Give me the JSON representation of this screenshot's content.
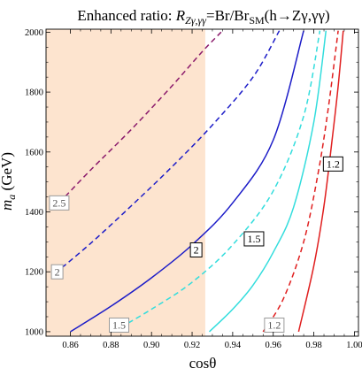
{
  "chart_data": {
    "type": "line",
    "title": "Enhanced ratio: R_{Zγ,γγ}=Br/Br_{SM}(h→Zγ,γγ)",
    "title_parts": [
      {
        "text": "Enhanced ratio: ",
        "style": "normal"
      },
      {
        "text": "R",
        "style": "italic"
      },
      {
        "text": "Zγ,γγ",
        "style": "sub-italic"
      },
      {
        "text": "=Br/Br",
        "style": "normal"
      },
      {
        "text": "SM",
        "style": "sub"
      },
      {
        "text": "(h→Zγ,γγ)",
        "style": "normal"
      }
    ],
    "xlabel": "cosθ",
    "ylabel": "m_a (GeV)",
    "ylabel_parts": [
      {
        "text": "m",
        "style": "italic"
      },
      {
        "text": "a",
        "style": "sub-italic"
      },
      {
        "text": " (GeV)",
        "style": "normal"
      }
    ],
    "xlim": [
      0.848,
      1.002
    ],
    "ylim": [
      985,
      2010
    ],
    "xticks": [
      0.86,
      0.88,
      0.9,
      0.92,
      0.94,
      0.96,
      0.98,
      1.0
    ],
    "xtick_labels": [
      "0.86",
      "0.88",
      "0.90",
      "0.92",
      "0.94",
      "0.96",
      "0.98",
      "1.00"
    ],
    "yticks": [
      1000,
      1200,
      1400,
      1600,
      1800,
      2000
    ],
    "ytick_labels": [
      "1000",
      "1200",
      "1400",
      "1600",
      "1800",
      "2000"
    ],
    "grid": false,
    "excluded_region": {
      "x_range": [
        0.848,
        0.9265
      ],
      "color": "#fde4cf"
    },
    "series": [
      {
        "color": "#8b1a6b",
        "dash": "dashed",
        "x": [
          0.8545,
          0.87,
          0.89,
          0.91,
          0.925,
          0.935
        ],
        "y": [
          1430,
          1540,
          1675,
          1820,
          1935,
          2005
        ]
      },
      {
        "color": "#1c1cc8",
        "dash": "dashed",
        "x": [
          0.8525,
          0.87,
          0.89,
          0.91,
          0.93,
          0.95,
          0.963
        ],
        "y": [
          1195,
          1295,
          1420,
          1550,
          1690,
          1850,
          2005
        ]
      },
      {
        "color": "#1c1cc8",
        "dash": "solid",
        "x": [
          0.86,
          0.88,
          0.9,
          0.92,
          0.94,
          0.96,
          0.975
        ],
        "y": [
          1000,
          1085,
          1180,
          1290,
          1430,
          1640,
          2005
        ]
      },
      {
        "color": "#33dddd",
        "dash": "dashed",
        "x": [
          0.881,
          0.9,
          0.92,
          0.94,
          0.96,
          0.975,
          0.983
        ],
        "y": [
          1000,
          1075,
          1165,
          1290,
          1470,
          1720,
          2005
        ]
      },
      {
        "color": "#33dddd",
        "dash": "solid",
        "x": [
          0.9285,
          0.94,
          0.95,
          0.96,
          0.97,
          0.98,
          0.986
        ],
        "y": [
          1000,
          1075,
          1155,
          1265,
          1415,
          1700,
          2005
        ]
      },
      {
        "color": "#e01f1f",
        "dash": "dashed",
        "x": [
          0.955,
          0.965,
          0.975,
          0.982,
          0.987,
          0.992
        ],
        "y": [
          1000,
          1110,
          1300,
          1525,
          1740,
          2005
        ]
      },
      {
        "color": "#e01f1f",
        "dash": "solid",
        "x": [
          0.9725,
          0.98,
          0.985,
          0.989,
          0.992,
          0.9945
        ],
        "y": [
          1000,
          1220,
          1420,
          1640,
          1820,
          2005
        ]
      }
    ],
    "annotations": [
      {
        "text": "2.5",
        "x": 0.8545,
        "y": 1430,
        "color": "#9a9a9a",
        "text_color": "#555555"
      },
      {
        "text": "2",
        "x": 0.8535,
        "y": 1200,
        "color": "#9a9a9a",
        "text_color": "#555555"
      },
      {
        "text": "2",
        "x": 0.922,
        "y": 1273,
        "color": "#000000",
        "text_color": "#000000"
      },
      {
        "text": "1.5",
        "x": 0.884,
        "y": 1022,
        "color": "#9a9a9a",
        "text_color": "#555555"
      },
      {
        "text": "1.5",
        "x": 0.9505,
        "y": 1310,
        "color": "#000000",
        "text_color": "#000000"
      },
      {
        "text": "1.2",
        "x": 0.9605,
        "y": 1022,
        "color": "#9a9a9a",
        "text_color": "#555555"
      },
      {
        "text": "1.2",
        "x": 0.9895,
        "y": 1560,
        "color": "#000000",
        "text_color": "#000000"
      }
    ]
  }
}
